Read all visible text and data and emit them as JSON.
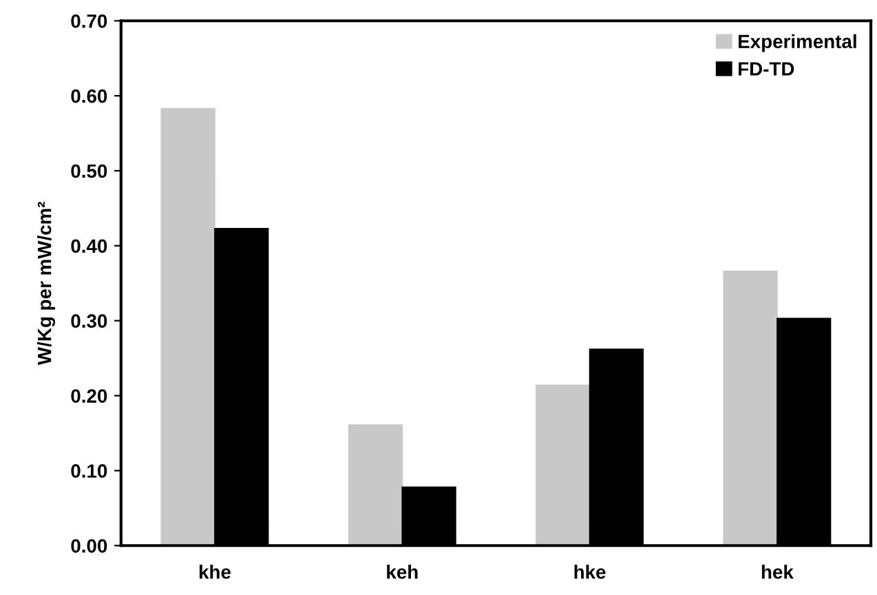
{
  "chart_data": {
    "type": "bar",
    "ylabel": "W/Kg per mW/cm²",
    "categories": [
      "khe",
      "keh",
      "hke",
      "hek"
    ],
    "series": [
      {
        "name": "Experimental",
        "color": "#c8c8c8",
        "values": [
          0.583,
          0.161,
          0.214,
          0.366
        ]
      },
      {
        "name": "FD-TD",
        "color": "#000000",
        "values": [
          0.423,
          0.078,
          0.262,
          0.303
        ]
      }
    ],
    "ylim": [
      0,
      0.7
    ],
    "yticks": [
      {
        "value": 0,
        "label": "0.00"
      },
      {
        "value": 0.1,
        "label": "0.10"
      },
      {
        "value": 0.2,
        "label": "0.20"
      },
      {
        "value": 0.3,
        "label": "0.30"
      },
      {
        "value": 0.4,
        "label": "0.40"
      },
      {
        "value": 0.5,
        "label": "0.50"
      },
      {
        "value": 0.6,
        "label": "0.60"
      },
      {
        "value": 0.7,
        "label": "0.70"
      }
    ],
    "grid": false,
    "legend": "top right"
  }
}
